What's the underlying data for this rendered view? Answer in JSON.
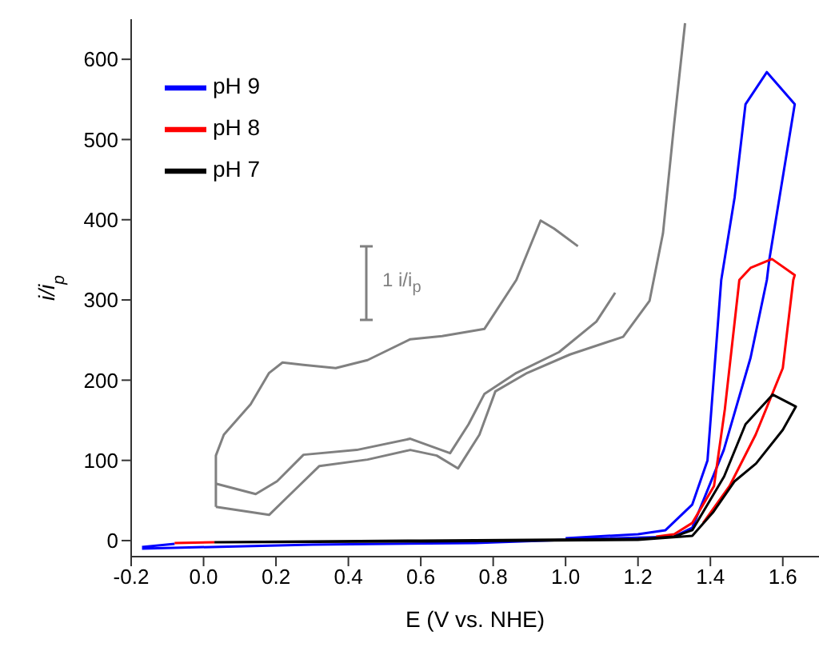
{
  "chart_data": {
    "type": "line",
    "xlabel": "E (V vs. NHE)",
    "ylabel": "i/i$_{p}$",
    "annotations": [
      "1 i/i$_{p}$"
    ],
    "xlim": [
      -0.2,
      1.7
    ],
    "xticks": [
      {
        "value": -0.2,
        "label": "-0.2"
      },
      {
        "value": 0,
        "label": "0.0"
      },
      0.2,
      0.4,
      0.6,
      0.8,
      {
        "value": 1,
        "label": "1.0"
      },
      1.2,
      1.4,
      1.6
    ],
    "ylim": [
      -20,
      650
    ],
    "yticks": [
      0,
      100,
      200,
      300,
      400,
      500,
      600
    ],
    "legend": "top left",
    "grid": false,
    "marker": "none",
    "line_style": "solid",
    "series": [
      {
        "name": "pH 9",
        "color": "#0000ff",
        "x": [
          -0.17,
          -0.08,
          0.5,
          1.0,
          1.2,
          1.276,
          1.35,
          1.392,
          1.43,
          1.467,
          1.497,
          1.556,
          1.633,
          1.563,
          1.556,
          1.511,
          1.437,
          1.35,
          1.3,
          1.0,
          0.75,
          0.3,
          -0.17
        ],
        "values": [
          -8,
          -4,
          null,
          3,
          8,
          13,
          45,
          100,
          325,
          428,
          544,
          584,
          544,
          351,
          325,
          228,
          113,
          16,
          5,
          1,
          -3,
          -5,
          -10
        ]
      },
      {
        "name": "pH 8",
        "color": "#ff0000",
        "x": [
          -0.08,
          0.03,
          0.6,
          1.25,
          1.3,
          1.35,
          1.41,
          1.44,
          1.48,
          1.511,
          1.57,
          1.633,
          1.629,
          1.6,
          1.525,
          1.453,
          1.38
        ],
        "values": [
          -3,
          -2,
          null,
          5,
          8,
          22,
          68,
          164,
          325,
          340,
          351,
          331,
          325,
          215,
          132,
          68,
          22
        ]
      },
      {
        "name": "pH 7",
        "color": "#000000",
        "x": [
          0.03,
          0.6,
          1.2,
          1.3,
          1.35,
          1.438,
          1.497,
          1.572,
          1.636,
          1.6,
          1.526,
          1.467,
          1.407,
          1.35,
          1.2,
          0.6,
          0.05
        ],
        "values": [
          -2,
          0,
          2,
          5,
          13,
          80,
          145,
          182,
          167,
          138,
          96,
          74,
          35,
          6,
          1,
          -1,
          -2
        ]
      },
      {
        "color": "#808080",
        "x": [
          0.034,
          0.034,
          0.056,
          0.13,
          0.181,
          0.218,
          0.276,
          0.365,
          0.453,
          0.571,
          0.659,
          0.776,
          0.864,
          0.931,
          0.968,
          1.034
        ],
        "values": [
          42,
          106,
          132,
          170,
          209,
          222,
          219,
          215,
          225,
          251,
          255,
          264,
          325,
          399,
          389,
          367
        ]
      },
      {
        "color": "#808080",
        "x": [
          0.034,
          0.144,
          0.203,
          0.276,
          0.423,
          0.571,
          0.681,
          0.732,
          0.776,
          0.864,
          0.982,
          1.085,
          1.137
        ],
        "values": [
          71,
          58,
          74,
          107,
          113,
          127,
          109,
          145,
          183,
          209,
          235,
          273,
          309
        ]
      },
      {
        "color": "#808080",
        "x": [
          0.034,
          0.181,
          0.247,
          0.32,
          0.453,
          0.571,
          0.644,
          0.703,
          0.762,
          0.806,
          0.894,
          1.012,
          1.159,
          1.232,
          1.269,
          1.3,
          1.33
        ],
        "values": [
          42,
          32,
          61,
          93,
          101,
          113,
          106,
          90,
          132,
          186,
          209,
          232,
          254,
          299,
          383,
          520,
          645
        ]
      }
    ]
  }
}
